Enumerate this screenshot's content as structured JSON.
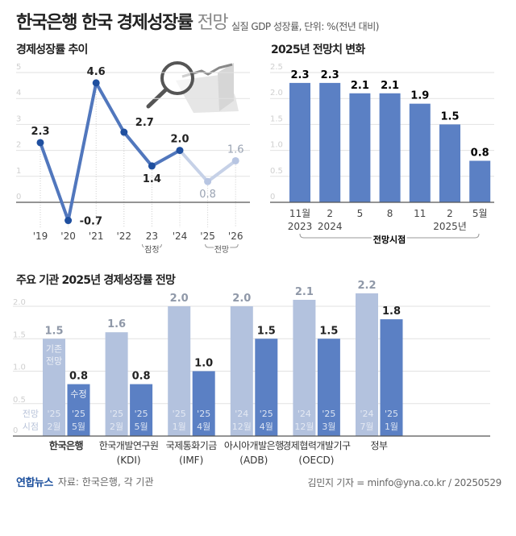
{
  "header": {
    "title_bold": "한국은행 한국 경제성장률",
    "title_light": "전망",
    "subtitle": "실질 GDP 성장률, 단위: %(전년 대비)"
  },
  "chart_data": [
    {
      "type": "line",
      "title": "경제성장률 추이",
      "categories": [
        "'19",
        "'20",
        "'21",
        "'22",
        "23",
        "'24",
        "'25",
        "'26"
      ],
      "values": [
        2.3,
        -0.7,
        4.6,
        2.7,
        1.4,
        2.0,
        0.8,
        1.6
      ],
      "value_labels": [
        "2.3",
        "-0.7",
        "4.6",
        "2.7",
        "1.4",
        "2.0",
        "0.8",
        "1.6"
      ],
      "projected_from_index": 5,
      "annotations": [
        {
          "label": "잠정",
          "category": "23"
        },
        {
          "label": "전망",
          "categories": [
            "'25",
            "'26"
          ]
        }
      ],
      "yticks": [
        "0",
        "1",
        "2",
        "3",
        "4",
        "5"
      ],
      "ylim": [
        -1,
        5
      ],
      "grid": true,
      "colors": {
        "actual": "#5177bd",
        "dot": "#1f4f9f",
        "projected": "#c6d1e7",
        "projected_dot": "#b7c5e2",
        "projected_label": "#9aa3b3"
      }
    },
    {
      "type": "bar",
      "title": "2025년 전망치 변화",
      "categories": [
        [
          "11월",
          "2023"
        ],
        [
          "2",
          "2024"
        ],
        [
          "5",
          ""
        ],
        [
          "8",
          ""
        ],
        [
          "11",
          ""
        ],
        [
          "2",
          "2025년"
        ],
        [
          "5월",
          ""
        ]
      ],
      "values": [
        2.3,
        2.3,
        2.1,
        2.1,
        1.9,
        1.5,
        0.8
      ],
      "value_labels": [
        "2.3",
        "2.3",
        "2.1",
        "2.1",
        "1.9",
        "1.5",
        "0.8"
      ],
      "xlabel": "전망시점",
      "yticks": [
        "0",
        "0.5",
        "1.0",
        "1.5",
        "2.0",
        "2.5"
      ],
      "ylim": [
        0,
        2.5
      ],
      "grid": true,
      "colors": {
        "bar": "#5b80c4"
      }
    },
    {
      "type": "bar",
      "title": "주요 기관 2025년 경제성장률 전망",
      "categories": [
        [
          "한국은행",
          ""
        ],
        [
          "한국개발연구원",
          "(KDI)"
        ],
        [
          "국제통화기금",
          "(IMF)"
        ],
        [
          "아시아개발은행",
          "(ADB)"
        ],
        [
          "경제협력개발기구",
          "(OECD)"
        ],
        [
          "정부",
          ""
        ]
      ],
      "series": [
        {
          "name": "기존 전망",
          "values": [
            1.5,
            1.6,
            2.0,
            2.0,
            2.1,
            2.2
          ],
          "value_labels": [
            "1.5",
            "1.6",
            "2.0",
            "2.0",
            "2.1",
            "2.2"
          ],
          "dates": [
            [
              "'25",
              "2월"
            ],
            [
              "'25",
              "2월"
            ],
            [
              "'25",
              "1월"
            ],
            [
              "'24",
              "12월"
            ],
            [
              "'24",
              "12월"
            ],
            [
              "'24",
              "7월"
            ]
          ]
        },
        {
          "name": "수정",
          "values": [
            0.8,
            0.8,
            1.0,
            1.5,
            1.5,
            1.8
          ],
          "value_labels": [
            "0.8",
            "0.8",
            "1.0",
            "1.5",
            "1.5",
            "1.8"
          ],
          "dates": [
            [
              "'25",
              "5월"
            ],
            [
              "'25",
              "5월"
            ],
            [
              "'25",
              "4월"
            ],
            [
              "'25",
              "4월"
            ],
            [
              "'25",
              "3월"
            ],
            [
              "'25",
              "1월"
            ]
          ]
        }
      ],
      "date_axis_label": [
        "전망",
        "시점"
      ],
      "yticks": [
        "0",
        "0.5",
        "1.0",
        "1.5",
        "2.0"
      ],
      "ylim": [
        0,
        2.0
      ],
      "grid": true,
      "colors": {
        "previous": "#b3c2de",
        "revised": "#5b80c4",
        "previous_label": "#8f98a8"
      }
    }
  ],
  "footer": {
    "logo": "연합뉴스",
    "source": "자료: 한국은행, 각 기관",
    "credit": "김민지 기자 = minfo@yna.co.kr / 20250529"
  }
}
